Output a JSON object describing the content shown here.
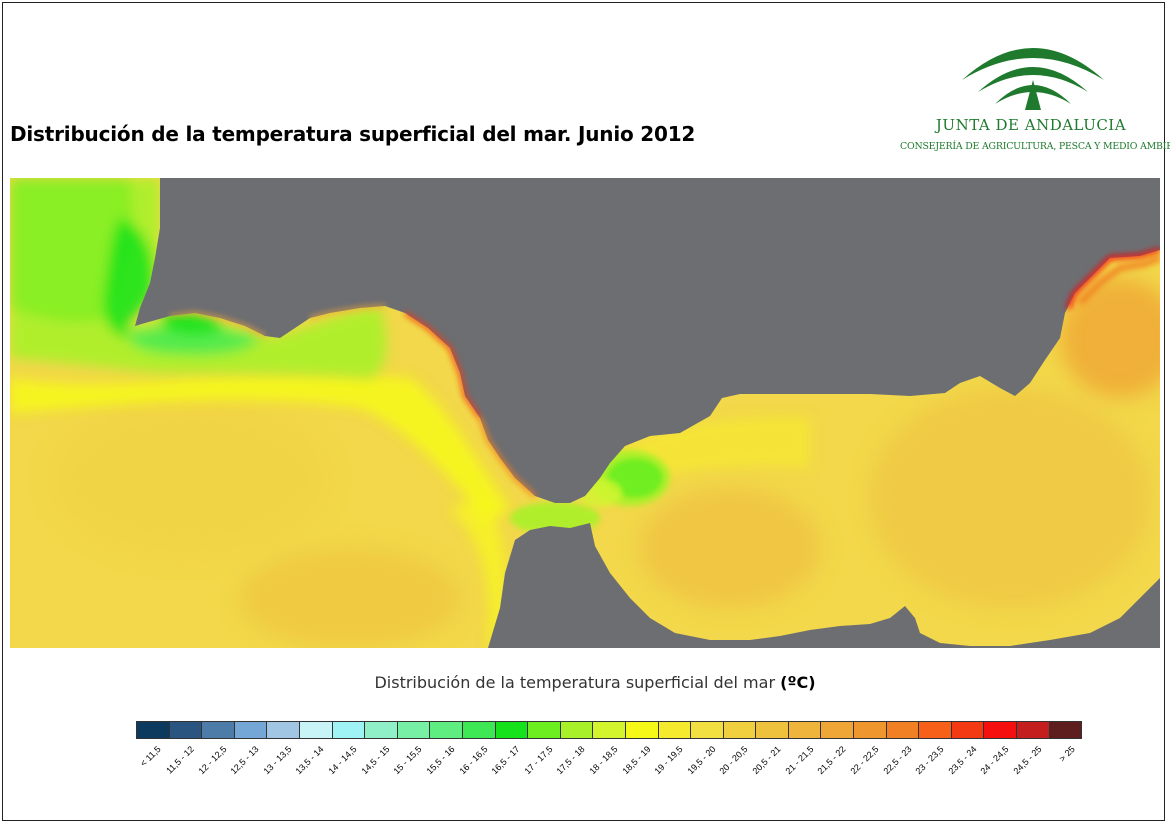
{
  "title": "Distribución de la temperatura superficial del mar. Junio 2012",
  "logo": {
    "name": "JUNTA DE ANDALUCIA",
    "subtitle": "CONSEJERÍA DE AGRICULTURA, PESCA Y MEDIO AMBIENTE"
  },
  "legend": {
    "title": "Distribución de la temperatura superficial del mar",
    "unit": "(ºC)",
    "classes": [
      {
        "label": "< 11,5",
        "color": "#0b3a5e"
      },
      {
        "label": "11,5 - 12",
        "color": "#2a5580"
      },
      {
        "label": "12 - 12,5",
        "color": "#4d7ca8"
      },
      {
        "label": "12,5 - 13",
        "color": "#74a6d6"
      },
      {
        "label": "13 - 13,5",
        "color": "#a0c6e4"
      },
      {
        "label": "13,5 - 14",
        "color": "#c8f4f8"
      },
      {
        "label": "14 - 14,5",
        "color": "#a0f3f5"
      },
      {
        "label": "14,5 - 15",
        "color": "#8ff0c8"
      },
      {
        "label": "15 - 15,5",
        "color": "#77f0a6"
      },
      {
        "label": "15,5 - 16",
        "color": "#5fec80"
      },
      {
        "label": "16 - 16,5",
        "color": "#3ee854"
      },
      {
        "label": "16,5 - 17",
        "color": "#15e21a"
      },
      {
        "label": "17 - 17,5",
        "color": "#6cee20"
      },
      {
        "label": "17,5 - 18",
        "color": "#a8f12a"
      },
      {
        "label": "18 - 18,5",
        "color": "#d2f52e"
      },
      {
        "label": "18,5 - 19",
        "color": "#f6f918"
      },
      {
        "label": "19 - 19,5",
        "color": "#f6ea2e"
      },
      {
        "label": "19,5 - 20",
        "color": "#f2df40"
      },
      {
        "label": "20 - 20,5",
        "color": "#f1d040"
      },
      {
        "label": "20,5 - 21",
        "color": "#efc23e"
      },
      {
        "label": "21 - 21,5",
        "color": "#efb43c"
      },
      {
        "label": "21,5 - 22",
        "color": "#efa636"
      },
      {
        "label": "22 - 22,5",
        "color": "#f0962e"
      },
      {
        "label": "22,5 - 23",
        "color": "#f17f24"
      },
      {
        "label": "23 - 23,5",
        "color": "#f66018"
      },
      {
        "label": "23,5 - 24",
        "color": "#f43a12"
      },
      {
        "label": "24 - 24,5",
        "color": "#f50f0f"
      },
      {
        "label": "24,5 - 25",
        "color": "#c41e1e"
      },
      {
        "label": "> 25",
        "color": "#5e1e1e"
      }
    ]
  },
  "map": {
    "land_color": "#6d6e72",
    "sea_base_color": "#f2d84a"
  }
}
